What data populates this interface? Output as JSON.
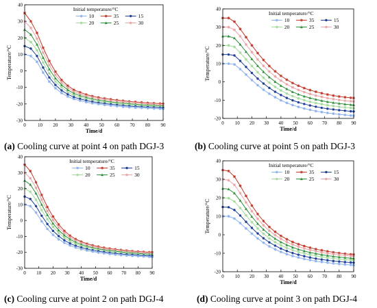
{
  "colors": {
    "10": "#8ab0ee",
    "35": "#c0392b",
    "15": "#1f3f99",
    "20": "#a3d99b",
    "25": "#2f8f3a",
    "30": "#e8a3a3",
    "axis": "#000000"
  },
  "chart_data": [
    {
      "type": "line",
      "panel": "(a)",
      "caption": "Cooling curve at point 4 on path DGJ-3",
      "legend_title": "Initial temperature/°C",
      "legend_order": [
        "10",
        "35",
        "15",
        "20",
        "25",
        "30"
      ],
      "xlabel": "Time/d",
      "ylabel": "Temperature/°C",
      "xlim": [
        0,
        90
      ],
      "ylim": [
        -30,
        40
      ],
      "xticks": [
        0,
        10,
        20,
        30,
        40,
        50,
        60,
        70,
        80,
        90
      ],
      "yticks": [
        -30,
        -20,
        -10,
        0,
        10,
        20,
        30,
        40
      ],
      "x": [
        0,
        4,
        8,
        12,
        16,
        20,
        24,
        28,
        32,
        36,
        40,
        44,
        48,
        52,
        56,
        60,
        64,
        68,
        72,
        76,
        80,
        84,
        88,
        90
      ],
      "series": [
        {
          "name": "35",
          "values": [
            35,
            30,
            23,
            14,
            6,
            -0.5,
            -5.5,
            -9,
            -11.5,
            -13,
            -14.3,
            -15.3,
            -16.1,
            -16.7,
            -17.2,
            -17.7,
            -18.1,
            -18.5,
            -18.8,
            -19.1,
            -19.4,
            -19.6,
            -19.8,
            -19.9
          ]
        },
        {
          "name": "30",
          "values": [
            30,
            26,
            19.5,
            11,
            3.5,
            -2.5,
            -7,
            -10.2,
            -12.5,
            -14,
            -15.2,
            -16.1,
            -16.9,
            -17.5,
            -18,
            -18.4,
            -18.8,
            -19.2,
            -19.5,
            -19.8,
            -20.1,
            -20.3,
            -20.5,
            -20.6
          ]
        },
        {
          "name": "25",
          "values": [
            25,
            22,
            16,
            8,
            1,
            -4.5,
            -8.5,
            -11.5,
            -13.6,
            -15,
            -16.1,
            -17,
            -17.7,
            -18.3,
            -18.8,
            -19.2,
            -19.6,
            -19.9,
            -20.2,
            -20.5,
            -20.7,
            -20.9,
            -21.1,
            -21.2
          ]
        },
        {
          "name": "20",
          "values": [
            20,
            17.5,
            12.5,
            5,
            -1.5,
            -6.5,
            -10,
            -12.8,
            -14.7,
            -16,
            -17,
            -17.8,
            -18.5,
            -19.1,
            -19.5,
            -19.9,
            -20.3,
            -20.6,
            -20.9,
            -21.1,
            -21.3,
            -21.5,
            -21.7,
            -21.8
          ]
        },
        {
          "name": "15",
          "values": [
            15,
            13.5,
            9,
            2,
            -4,
            -8.5,
            -11.8,
            -14.2,
            -15.9,
            -17,
            -17.9,
            -18.7,
            -19.3,
            -19.8,
            -20.2,
            -20.6,
            -21,
            -21.3,
            -21.5,
            -21.7,
            -21.9,
            -22.1,
            -22.3,
            -22.4
          ]
        },
        {
          "name": "10",
          "values": [
            10,
            9,
            5.5,
            -1,
            -6.5,
            -10.5,
            -13.4,
            -15.5,
            -17,
            -18,
            -18.9,
            -19.6,
            -20.1,
            -20.6,
            -21,
            -21.4,
            -21.7,
            -22,
            -22.2,
            -22.4,
            -22.6,
            -22.8,
            -22.9,
            -23
          ]
        }
      ]
    },
    {
      "type": "line",
      "panel": "(b)",
      "caption": "Cooling curve at point 5 on path DGJ-3",
      "legend_title": "Initial temperature/°C",
      "legend_order": [
        "10",
        "35",
        "15",
        "20",
        "25",
        "30"
      ],
      "xlabel": "Time/d",
      "ylabel": "Temperature/°C",
      "xlim": [
        0,
        90
      ],
      "ylim": [
        -20,
        40
      ],
      "xticks": [
        0,
        10,
        20,
        30,
        40,
        50,
        60,
        70,
        80,
        90
      ],
      "yticks": [
        -20,
        -10,
        0,
        10,
        20,
        30,
        40
      ],
      "x": [
        0,
        4,
        8,
        12,
        16,
        20,
        24,
        28,
        32,
        36,
        40,
        44,
        48,
        52,
        56,
        60,
        64,
        68,
        72,
        76,
        80,
        84,
        88,
        90
      ],
      "series": [
        {
          "name": "35",
          "values": [
            35,
            35,
            33,
            29,
            24.5,
            20,
            15.8,
            12,
            8.7,
            5.8,
            3.3,
            1.2,
            -0.6,
            -2.1,
            -3.4,
            -4.5,
            -5.4,
            -6.2,
            -6.9,
            -7.5,
            -8,
            -8.4,
            -8.7,
            -8.8
          ]
        },
        {
          "name": "30",
          "values": [
            30,
            30,
            28.5,
            25,
            20.5,
            16.3,
            12.3,
            8.8,
            5.7,
            3,
            0.7,
            -1.3,
            -3,
            -4.4,
            -5.6,
            -6.6,
            -7.5,
            -8.2,
            -8.9,
            -9.4,
            -9.9,
            -10.3,
            -10.6,
            -10.7
          ]
        },
        {
          "name": "25",
          "values": [
            25,
            25,
            24,
            20.5,
            16.5,
            12.5,
            8.8,
            5.5,
            2.6,
            0.1,
            -2.1,
            -3.9,
            -5.5,
            -6.8,
            -7.9,
            -8.8,
            -9.6,
            -10.3,
            -10.9,
            -11.4,
            -11.8,
            -12.2,
            -12.5,
            -12.6
          ]
        },
        {
          "name": "20",
          "values": [
            20,
            20,
            19.2,
            16,
            12.3,
            8.7,
            5.3,
            2.3,
            -0.4,
            -2.7,
            -4.7,
            -6.4,
            -7.8,
            -9,
            -10,
            -10.9,
            -11.6,
            -12.2,
            -12.8,
            -13.2,
            -13.6,
            -14,
            -14.3,
            -14.4
          ]
        },
        {
          "name": "15",
          "values": [
            15,
            15,
            14.5,
            11.5,
            8.2,
            4.9,
            1.8,
            -0.9,
            -3.3,
            -5.4,
            -7.2,
            -8.8,
            -10.1,
            -11.2,
            -12.1,
            -12.9,
            -13.6,
            -14.2,
            -14.7,
            -15.1,
            -15.5,
            -15.8,
            -16.1,
            -16.2
          ]
        },
        {
          "name": "10",
          "values": [
            10,
            10,
            9.6,
            7,
            4,
            1,
            -1.8,
            -4.3,
            -6.5,
            -8.4,
            -10.1,
            -11.5,
            -12.7,
            -13.7,
            -14.6,
            -15.3,
            -16,
            -16.5,
            -17,
            -17.4,
            -17.8,
            -18.1,
            -18.4,
            -18.5
          ]
        }
      ]
    },
    {
      "type": "line",
      "panel": "(c)",
      "caption": "Cooling curve at point 2 on path DGJ-4",
      "legend_title": "Initial temperature/°C",
      "legend_order": [
        "10",
        "35",
        "15",
        "20",
        "25",
        "30"
      ],
      "xlabel": "Time/d",
      "ylabel": "Temperature/°C",
      "xlim": [
        0,
        90
      ],
      "ylim": [
        -30,
        40
      ],
      "xticks": [
        0,
        10,
        20,
        30,
        40,
        50,
        60,
        70,
        80,
        90
      ],
      "yticks": [
        -30,
        -20,
        -10,
        0,
        10,
        20,
        30,
        40
      ],
      "x": [
        0,
        4,
        8,
        12,
        16,
        20,
        24,
        28,
        32,
        36,
        40,
        44,
        48,
        52,
        56,
        60,
        64,
        68,
        72,
        76,
        80,
        84,
        88,
        90
      ],
      "series": [
        {
          "name": "35",
          "values": [
            35,
            31,
            24,
            16,
            8.5,
            2.5,
            -2.5,
            -6.5,
            -9.5,
            -11.7,
            -13.3,
            -14.6,
            -15.6,
            -16.4,
            -17.1,
            -17.6,
            -18.1,
            -18.5,
            -18.9,
            -19.2,
            -19.5,
            -19.7,
            -19.9,
            -20
          ]
        },
        {
          "name": "30",
          "values": [
            30,
            26.5,
            20.5,
            13,
            6,
            0.3,
            -4.3,
            -7.9,
            -10.7,
            -12.7,
            -14.2,
            -15.4,
            -16.4,
            -17.1,
            -17.8,
            -18.3,
            -18.7,
            -19.1,
            -19.5,
            -19.8,
            -20.1,
            -20.3,
            -20.5,
            -20.6
          ]
        },
        {
          "name": "25",
          "values": [
            25,
            22.5,
            17,
            10,
            3.5,
            -1.9,
            -6.1,
            -9.3,
            -11.8,
            -13.7,
            -15.1,
            -16.2,
            -17.1,
            -17.8,
            -18.4,
            -18.9,
            -19.3,
            -19.7,
            -20.1,
            -20.4,
            -20.6,
            -20.9,
            -21.1,
            -21.2
          ]
        },
        {
          "name": "20",
          "values": [
            20,
            18,
            13,
            6.5,
            0.8,
            -4,
            -7.8,
            -10.8,
            -13,
            -14.7,
            -16,
            -17,
            -17.8,
            -18.5,
            -19.1,
            -19.6,
            -20,
            -20.3,
            -20.6,
            -20.9,
            -21.2,
            -21.4,
            -21.6,
            -21.7
          ]
        },
        {
          "name": "15",
          "values": [
            15,
            13.5,
            9,
            3,
            -2.2,
            -6.5,
            -9.8,
            -12.4,
            -14.4,
            -15.9,
            -17,
            -17.9,
            -18.7,
            -19.3,
            -19.8,
            -20.3,
            -20.7,
            -21,
            -21.3,
            -21.5,
            -21.8,
            -22,
            -22.2,
            -22.3
          ]
        },
        {
          "name": "10",
          "values": [
            10,
            9,
            5,
            -0.5,
            -5.3,
            -9,
            -11.8,
            -14,
            -15.7,
            -17,
            -18,
            -18.8,
            -19.5,
            -20.1,
            -20.6,
            -21,
            -21.4,
            -21.7,
            -22,
            -22.2,
            -22.4,
            -22.6,
            -22.8,
            -22.9
          ]
        }
      ]
    },
    {
      "type": "line",
      "panel": "(d)",
      "caption": "Cooling curve at point 3 on path DGJ-4",
      "legend_title": "Initial temperature/°C",
      "legend_order": [
        "10",
        "35",
        "15",
        "20",
        "25",
        "30"
      ],
      "xlabel": "Time/d",
      "ylabel": "Temperature/°C",
      "xlim": [
        0,
        90
      ],
      "ylim": [
        -20,
        40
      ],
      "xticks": [
        0,
        10,
        20,
        30,
        40,
        50,
        60,
        70,
        80,
        90
      ],
      "yticks": [
        -20,
        -10,
        0,
        10,
        20,
        30,
        40
      ],
      "x": [
        0,
        4,
        8,
        12,
        16,
        20,
        24,
        28,
        32,
        36,
        40,
        44,
        48,
        52,
        56,
        60,
        64,
        68,
        72,
        76,
        80,
        84,
        88,
        90
      ],
      "series": [
        {
          "name": "35",
          "values": [
            35,
            34.5,
            31.5,
            26.5,
            21,
            15.8,
            11.2,
            7.4,
            4.2,
            1.6,
            -0.6,
            -2.4,
            -3.9,
            -5.1,
            -6.1,
            -7,
            -7.8,
            -8.4,
            -9,
            -9.5,
            -9.9,
            -10.3,
            -10.6,
            -10.7
          ]
        },
        {
          "name": "30",
          "values": [
            30,
            29.5,
            27,
            22.5,
            17.5,
            12.8,
            8.6,
            5.1,
            2.2,
            -0.2,
            -2.2,
            -3.9,
            -5.3,
            -6.4,
            -7.4,
            -8.2,
            -8.9,
            -9.5,
            -10.1,
            -10.5,
            -10.9,
            -11.2,
            -11.5,
            -11.6
          ]
        },
        {
          "name": "25",
          "values": [
            25,
            24.7,
            22.5,
            18.5,
            14,
            9.8,
            6,
            2.8,
            0.1,
            -2.1,
            -4,
            -5.5,
            -6.8,
            -7.9,
            -8.8,
            -9.6,
            -10.2,
            -10.8,
            -11.3,
            -11.7,
            -12.1,
            -12.4,
            -12.7,
            -12.8
          ]
        },
        {
          "name": "20",
          "values": [
            20,
            19.8,
            18,
            14.5,
            10.5,
            6.8,
            3.4,
            0.5,
            -2,
            -4,
            -5.7,
            -7.1,
            -8.3,
            -9.3,
            -10.1,
            -10.8,
            -11.4,
            -12,
            -12.4,
            -12.8,
            -13.2,
            -13.5,
            -13.7,
            -13.8
          ]
        },
        {
          "name": "15",
          "values": [
            15,
            14.9,
            13.4,
            10.4,
            7,
            3.7,
            0.7,
            -1.9,
            -4.1,
            -5.9,
            -7.5,
            -8.8,
            -9.9,
            -10.8,
            -11.6,
            -12.3,
            -12.9,
            -13.4,
            -13.8,
            -14.2,
            -14.5,
            -14.8,
            -15,
            -15.1
          ]
        },
        {
          "name": "10",
          "values": [
            10,
            10,
            8.8,
            6.3,
            3.4,
            0.6,
            -2,
            -4.3,
            -6.3,
            -7.9,
            -9.3,
            -10.5,
            -11.5,
            -12.3,
            -13.1,
            -13.7,
            -14.3,
            -14.7,
            -15.1,
            -15.5,
            -15.8,
            -16.1,
            -16.3,
            -16.4
          ]
        }
      ]
    }
  ]
}
